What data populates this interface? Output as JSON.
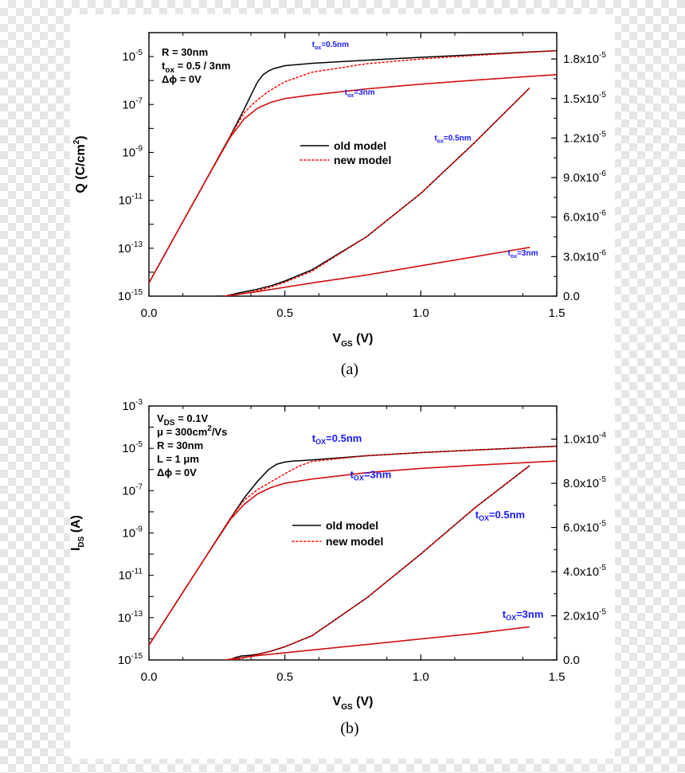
{
  "colors": {
    "old": "#000000",
    "new": "#ff0000",
    "overlap": "#8b2020",
    "label": "#1a1aff"
  },
  "chart_data": [
    {
      "type": "line",
      "panel_caption": "(a)",
      "xlabel_main": "V",
      "xlabel_sub": "GS",
      "xlabel_unit": " (V)",
      "ylabel_left": "Q (C/cm",
      "ylabel_left_sup": "2",
      "ylabel_left_end": ")",
      "xlim": [
        0,
        1.5
      ],
      "ylim_left_log": [
        -15,
        -4
      ],
      "ylim_right": [
        0,
        2e-05
      ],
      "x_ticks": [
        "0.0",
        "0.5",
        "1.0",
        "1.5"
      ],
      "y_left_ticks": [
        {
          "exp": -15,
          "base": "10",
          "sup": "-15"
        },
        {
          "exp": -13,
          "base": "10",
          "sup": "-13"
        },
        {
          "exp": -11,
          "base": "10",
          "sup": "-11"
        },
        {
          "exp": -9,
          "base": "10",
          "sup": "-9"
        },
        {
          "exp": -7,
          "base": "10",
          "sup": "-7"
        },
        {
          "exp": -5,
          "base": "10",
          "sup": "-5"
        }
      ],
      "y_right_ticks": [
        {
          "v": 0,
          "m": "0.0",
          "sup": ""
        },
        {
          "v": 3e-06,
          "m": "3.0x10",
          "sup": "-6"
        },
        {
          "v": 6e-06,
          "m": "6.0x10",
          "sup": "-6"
        },
        {
          "v": 9e-06,
          "m": "9.0x10",
          "sup": "-6"
        },
        {
          "v": 1.2e-05,
          "m": "1.2x10",
          "sup": "-5"
        },
        {
          "v": 1.5e-05,
          "m": "1.5x10",
          "sup": "-5"
        },
        {
          "v": 1.8e-05,
          "m": "1.8x10",
          "sup": "-5"
        }
      ],
      "info_lines": [
        {
          "parts": [
            {
              "t": "R = 30nm"
            }
          ]
        },
        {
          "parts": [
            {
              "t": "t"
            },
            {
              "t": "ox",
              "sub": true
            },
            {
              "t": " = 0.5 / 3nm"
            }
          ]
        },
        {
          "parts": [
            {
              "t": "Δϕ = 0V"
            }
          ]
        }
      ],
      "legend": [
        {
          "name": "old model",
          "style": "solid"
        },
        {
          "name": "new model",
          "style": "dotted"
        }
      ],
      "curve_labels": [
        {
          "pre": "t",
          "sub": "ox",
          "post": "=0.5nm",
          "x": 0.6,
          "axis": "log",
          "y": -4.6,
          "size": "sm"
        },
        {
          "pre": "t",
          "sub": "ox",
          "post": "=3nm",
          "x": 0.72,
          "axis": "log",
          "y": -6.6,
          "size": "sm"
        },
        {
          "pre": "t",
          "sub": "ox",
          "post": "=0.5nm",
          "x": 1.05,
          "axis": "log",
          "y": -8.5,
          "size": "sm"
        },
        {
          "pre": "t",
          "sub": "ox",
          "post": "=3nm",
          "x": 1.32,
          "axis": "log",
          "y": -13.3,
          "size": "sm"
        }
      ],
      "series": [
        {
          "name": "old model",
          "tox": "0.5nm",
          "axis": "log_left",
          "x": [
            0,
            0.1,
            0.2,
            0.3,
            0.35,
            0.38,
            0.4,
            0.42,
            0.44,
            0.46,
            0.5,
            0.6,
            0.8,
            1.0,
            1.2,
            1.5
          ],
          "y": [
            -14.45,
            -12.4,
            -10.35,
            -8.3,
            -7.2,
            -6.5,
            -6.05,
            -5.75,
            -5.6,
            -5.5,
            -5.38,
            -5.28,
            -5.15,
            -5.03,
            -4.92,
            -4.75
          ]
        },
        {
          "name": "new model",
          "tox": "0.5nm",
          "axis": "log_left",
          "x": [
            0,
            0.1,
            0.2,
            0.3,
            0.35,
            0.38,
            0.4,
            0.44,
            0.5,
            0.6,
            0.8,
            1.0,
            1.2,
            1.5
          ],
          "y": [
            -14.45,
            -12.4,
            -10.35,
            -8.3,
            -7.35,
            -7.0,
            -6.8,
            -6.45,
            -6.05,
            -5.65,
            -5.3,
            -5.1,
            -4.95,
            -4.75
          ]
        },
        {
          "name": "old model",
          "tox": "3nm",
          "axis": "log_left",
          "x": [
            0,
            0.1,
            0.2,
            0.3,
            0.35,
            0.4,
            0.45,
            0.5,
            0.6,
            0.8,
            1.0,
            1.2,
            1.5
          ],
          "y": [
            -14.45,
            -12.4,
            -10.35,
            -8.35,
            -7.6,
            -7.15,
            -6.9,
            -6.75,
            -6.6,
            -6.35,
            -6.15,
            -5.98,
            -5.75
          ]
        },
        {
          "name": "new model",
          "tox": "3nm",
          "axis": "log_left",
          "x": [
            0,
            0.1,
            0.2,
            0.3,
            0.35,
            0.4,
            0.45,
            0.5,
            0.6,
            0.8,
            1.0,
            1.2,
            1.5
          ],
          "y": [
            -14.45,
            -12.4,
            -10.35,
            -8.35,
            -7.6,
            -7.15,
            -6.9,
            -6.75,
            -6.6,
            -6.35,
            -6.15,
            -5.98,
            -5.75
          ]
        },
        {
          "name": "old model",
          "tox": "0.5nm",
          "axis": "linear_right",
          "x": [
            0.25,
            0.28,
            0.3,
            0.33,
            0.36,
            0.4,
            0.45,
            0.5,
            0.6,
            0.8,
            1.0,
            1.2,
            1.4
          ],
          "y": [
            0,
            0.0,
            1e-07,
            2.4e-07,
            3.6e-07,
            5.3e-07,
            8e-07,
            1.15e-06,
            2e-06,
            4.5e-06,
            7.8e-06,
            1.17e-05,
            1.58e-05
          ]
        },
        {
          "name": "new model",
          "tox": "0.5nm",
          "axis": "linear_right",
          "x": [
            0.28,
            0.32,
            0.36,
            0.4,
            0.45,
            0.5,
            0.6,
            0.8,
            1.0,
            1.2,
            1.4
          ],
          "y": [
            0,
            1e-07,
            2.5e-07,
            4.3e-07,
            7e-07,
            1.05e-06,
            1.9e-06,
            4.5e-06,
            7.8e-06,
            1.17e-05,
            1.58e-05
          ]
        },
        {
          "name": "old model",
          "tox": "3nm",
          "axis": "linear_right",
          "x": [
            0.28,
            0.4,
            0.6,
            0.8,
            1.0,
            1.2,
            1.4
          ],
          "y": [
            0,
            3.5e-07,
            1e-06,
            1.6e-06,
            2.3e-06,
            3e-06,
            3.7e-06
          ]
        },
        {
          "name": "new model",
          "tox": "3nm",
          "axis": "linear_right",
          "x": [
            0.28,
            0.4,
            0.6,
            0.8,
            1.0,
            1.2,
            1.4
          ],
          "y": [
            0,
            3.5e-07,
            1e-06,
            1.6e-06,
            2.3e-06,
            3e-06,
            3.7e-06
          ]
        }
      ]
    },
    {
      "type": "line",
      "panel_caption": "(b)",
      "xlabel_main": "V",
      "xlabel_sub": "GS",
      "xlabel_unit": " (V)",
      "ylabel_left": "I",
      "ylabel_left_sub": "DS",
      "ylabel_left_end": " (A)",
      "xlim": [
        0,
        1.5
      ],
      "ylim_left_log": [
        -15,
        -3
      ],
      "ylim_right": [
        0,
        0.000115
      ],
      "x_ticks": [
        "0.0",
        "0.5",
        "1.0",
        "1.5"
      ],
      "y_left_ticks": [
        {
          "exp": -15,
          "base": "10",
          "sup": "-15"
        },
        {
          "exp": -13,
          "base": "10",
          "sup": "-13"
        },
        {
          "exp": -11,
          "base": "10",
          "sup": "-11"
        },
        {
          "exp": -9,
          "base": "10",
          "sup": "-9"
        },
        {
          "exp": -7,
          "base": "10",
          "sup": "-7"
        },
        {
          "exp": -5,
          "base": "10",
          "sup": "-5"
        },
        {
          "exp": -3,
          "base": "10",
          "sup": "-3"
        }
      ],
      "y_right_ticks": [
        {
          "v": 0,
          "m": "0.0",
          "sup": ""
        },
        {
          "v": 2e-05,
          "m": "2.0x10",
          "sup": "-5"
        },
        {
          "v": 4e-05,
          "m": "4.0x10",
          "sup": "-5"
        },
        {
          "v": 6e-05,
          "m": "6.0x10",
          "sup": "-5"
        },
        {
          "v": 8e-05,
          "m": "8.0x10",
          "sup": "-5"
        },
        {
          "v": 0.0001,
          "m": "1.0x10",
          "sup": "-4"
        }
      ],
      "info_lines": [
        {
          "parts": [
            {
              "t": "V"
            },
            {
              "t": "DS",
              "sub": true
            },
            {
              "t": " = 0.1V"
            }
          ]
        },
        {
          "parts": [
            {
              "t": "μ = 300cm"
            },
            {
              "t": "2",
              "sup": true
            },
            {
              "t": "/Vs"
            }
          ]
        },
        {
          "parts": [
            {
              "t": "R = 30nm"
            }
          ]
        },
        {
          "parts": [
            {
              "t": "L = 1 μm"
            }
          ]
        },
        {
          "parts": [
            {
              "t": "Δϕ = 0V"
            }
          ]
        }
      ],
      "legend": [
        {
          "name": "old model",
          "style": "solid"
        },
        {
          "name": "new model",
          "style": "dotted"
        }
      ],
      "curve_labels": [
        {
          "pre": "t",
          "sub": "OX",
          "post": "=0.5nm",
          "x": 0.6,
          "axis": "log",
          "y": -4.7,
          "size": "lg"
        },
        {
          "pre": "t",
          "sub": "OX",
          "post": "=3nm",
          "x": 0.74,
          "axis": "log",
          "y": -6.4,
          "size": "lg"
        },
        {
          "pre": "t",
          "sub": "OX",
          "post": "=0.5nm",
          "x": 1.2,
          "axis": "log",
          "y": -8.3,
          "size": "lg"
        },
        {
          "pre": "t",
          "sub": "OX",
          "post": "=3nm",
          "x": 1.3,
          "axis": "log",
          "y": -13.0,
          "size": "lg"
        }
      ],
      "series": [
        {
          "name": "old model",
          "tox": "0.5nm",
          "axis": "log_left",
          "x": [
            0,
            0.1,
            0.2,
            0.3,
            0.35,
            0.4,
            0.44,
            0.47,
            0.5,
            0.53,
            0.56,
            0.6,
            0.8,
            1.0,
            1.2,
            1.5
          ],
          "y": [
            -14.3,
            -12.3,
            -10.3,
            -8.3,
            -7.35,
            -6.55,
            -6.0,
            -5.75,
            -5.65,
            -5.6,
            -5.58,
            -5.55,
            -5.35,
            -5.2,
            -5.08,
            -4.9
          ]
        },
        {
          "name": "new model",
          "tox": "0.5nm",
          "axis": "log_left",
          "x": [
            0,
            0.1,
            0.2,
            0.3,
            0.35,
            0.4,
            0.44,
            0.5,
            0.55,
            0.6,
            0.8,
            1.0,
            1.2,
            1.5
          ],
          "y": [
            -14.3,
            -12.3,
            -10.3,
            -8.3,
            -7.45,
            -6.95,
            -6.65,
            -6.2,
            -5.85,
            -5.62,
            -5.35,
            -5.2,
            -5.08,
            -4.9
          ]
        },
        {
          "name": "old model",
          "tox": "3nm",
          "axis": "log_left",
          "x": [
            0,
            0.1,
            0.2,
            0.3,
            0.35,
            0.4,
            0.45,
            0.5,
            0.6,
            0.8,
            1.0,
            1.2,
            1.5
          ],
          "y": [
            -14.3,
            -12.3,
            -10.3,
            -8.35,
            -7.65,
            -7.15,
            -6.85,
            -6.65,
            -6.45,
            -6.15,
            -5.95,
            -5.8,
            -5.6
          ]
        },
        {
          "name": "new model",
          "tox": "3nm",
          "axis": "log_left",
          "x": [
            0,
            0.1,
            0.2,
            0.3,
            0.35,
            0.4,
            0.45,
            0.5,
            0.6,
            0.8,
            1.0,
            1.2,
            1.5
          ],
          "y": [
            -14.3,
            -12.3,
            -10.3,
            -8.35,
            -7.65,
            -7.15,
            -6.85,
            -6.65,
            -6.45,
            -6.15,
            -5.95,
            -5.8,
            -5.6
          ]
        },
        {
          "name": "old model",
          "tox": "0.5nm",
          "axis": "linear_right",
          "x": [
            0.28,
            0.3,
            0.32,
            0.34,
            0.36,
            0.38,
            0.4,
            0.45,
            0.5,
            0.6,
            0.8,
            1.0,
            1.2,
            1.4
          ],
          "y": [
            0,
            3e-07,
            1.2e-06,
            1.8e-06,
            2e-06,
            2.2e-06,
            2.6e-06,
            4e-06,
            6e-06,
            1.1e-05,
            2.8e-05,
            4.8e-05,
            6.9e-05,
            8.8e-05
          ]
        },
        {
          "name": "new model",
          "tox": "0.5nm",
          "axis": "linear_right",
          "x": [
            0.3,
            0.34,
            0.38,
            0.42,
            0.46,
            0.5,
            0.6,
            0.8,
            1.0,
            1.2,
            1.4
          ],
          "y": [
            0,
            7e-07,
            1.8e-06,
            3e-06,
            4.4e-06,
            6e-06,
            1.1e-05,
            2.8e-05,
            4.8e-05,
            6.9e-05,
            8.8e-05
          ]
        },
        {
          "name": "old model",
          "tox": "3nm",
          "axis": "linear_right",
          "x": [
            0.28,
            0.4,
            0.6,
            0.8,
            1.0,
            1.2,
            1.4
          ],
          "y": [
            0,
            2e-06,
            4.5e-06,
            7e-06,
            9.5e-06,
            1.2e-05,
            1.5e-05
          ]
        },
        {
          "name": "new model",
          "tox": "3nm",
          "axis": "linear_right",
          "x": [
            0.28,
            0.4,
            0.6,
            0.8,
            1.0,
            1.2,
            1.4
          ],
          "y": [
            0,
            2e-06,
            4.5e-06,
            7e-06,
            9.5e-06,
            1.2e-05,
            1.5e-05
          ]
        }
      ]
    }
  ]
}
